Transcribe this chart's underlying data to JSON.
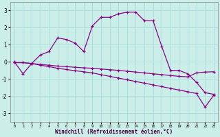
{
  "xlabel": "Windchill (Refroidissement éolien,°C)",
  "ylabel": "",
  "bg_color": "#cceee8",
  "grid_color": "#aadddd",
  "line_color": "#880088",
  "xlim": [
    -0.5,
    23.5
  ],
  "ylim": [
    -3.5,
    3.5
  ],
  "xticks": [
    0,
    1,
    2,
    3,
    4,
    5,
    6,
    7,
    8,
    9,
    10,
    11,
    12,
    13,
    14,
    15,
    16,
    17,
    18,
    19,
    20,
    21,
    22,
    23
  ],
  "yticks": [
    -3,
    -2,
    -1,
    0,
    1,
    2,
    3
  ],
  "line1": [
    0.0,
    -0.7,
    -0.1,
    0.4,
    0.6,
    1.4,
    1.3,
    1.1,
    0.6,
    2.1,
    2.6,
    2.6,
    2.8,
    2.9,
    2.9,
    2.4,
    2.4,
    0.9,
    -0.5,
    -0.5,
    -0.7,
    -1.2,
    -1.8,
    -1.9
  ],
  "line2": [
    -0.05,
    -0.05,
    -0.1,
    -0.15,
    -0.2,
    -0.25,
    -0.28,
    -0.32,
    -0.35,
    -0.38,
    -0.42,
    -0.46,
    -0.5,
    -0.55,
    -0.6,
    -0.65,
    -0.7,
    -0.75,
    -0.8,
    -0.85,
    -0.88,
    -0.65,
    -0.6,
    -0.58
  ],
  "line3": [
    -0.05,
    -0.05,
    -0.1,
    -0.2,
    -0.28,
    -0.38,
    -0.45,
    -0.52,
    -0.58,
    -0.65,
    -0.75,
    -0.85,
    -0.95,
    -1.05,
    -1.15,
    -1.25,
    -1.35,
    -1.45,
    -1.55,
    -1.65,
    -1.75,
    -1.85,
    -2.65,
    -1.95
  ]
}
